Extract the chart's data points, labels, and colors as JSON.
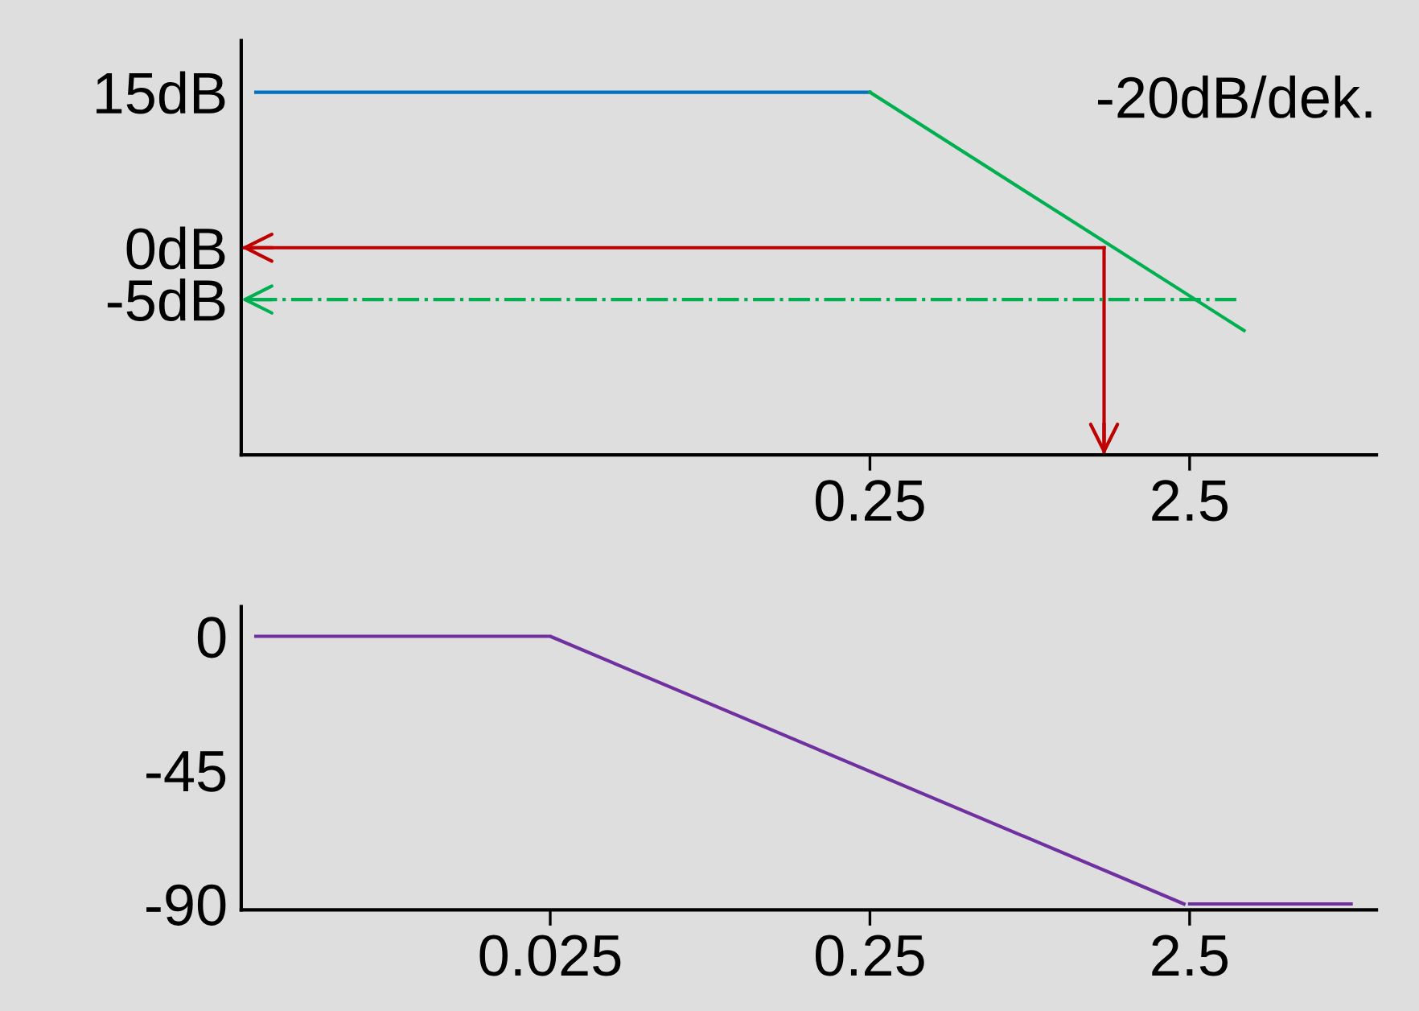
{
  "chart_data": [
    {
      "type": "line",
      "log": "x",
      "xlim": [
        0.0027,
        9.6
      ],
      "xticks": [
        0.25,
        2.5
      ],
      "ylim": [
        -20,
        20
      ],
      "yticks": [
        {
          "value": 15,
          "label": "15dB"
        },
        {
          "value": 0,
          "label": "0dB"
        },
        {
          "value": -5,
          "label": "-5dB"
        }
      ],
      "grid": false,
      "annotations": [
        "-20dB/dek."
      ],
      "series": [
        {
          "color": "#0070c0",
          "x": [
            0.003,
            0.25
          ],
          "values": [
            15,
            15
          ]
        },
        {
          "color": "#00b050",
          "x": [
            0.25,
            3.7
          ],
          "values": [
            15,
            -8
          ]
        },
        {
          "color": "#c00000",
          "x": [
            1.35,
            0.0027
          ],
          "values": [
            0,
            0
          ]
        },
        {
          "color": "#c00000",
          "x": [
            1.35,
            1.35
          ],
          "values": [
            0,
            -20
          ]
        },
        {
          "color": "#00b050",
          "line_style": "dashdot",
          "x": [
            3.5,
            0.0027
          ],
          "values": [
            -5,
            -5
          ]
        }
      ]
    },
    {
      "type": "line",
      "log": "x",
      "xlim": [
        0.0027,
        9.6
      ],
      "xticks": [
        0.025,
        0.25,
        2.5
      ],
      "ylim": [
        -92,
        10
      ],
      "yticks": [
        0,
        -45,
        -90
      ],
      "grid": false,
      "series": [
        {
          "color": "#7030a0",
          "x": [
            0.003,
            0.025,
            2.4,
            null,
            2.5,
            8
          ],
          "values": [
            0,
            0,
            -90,
            null,
            -90,
            -90
          ]
        }
      ]
    }
  ]
}
